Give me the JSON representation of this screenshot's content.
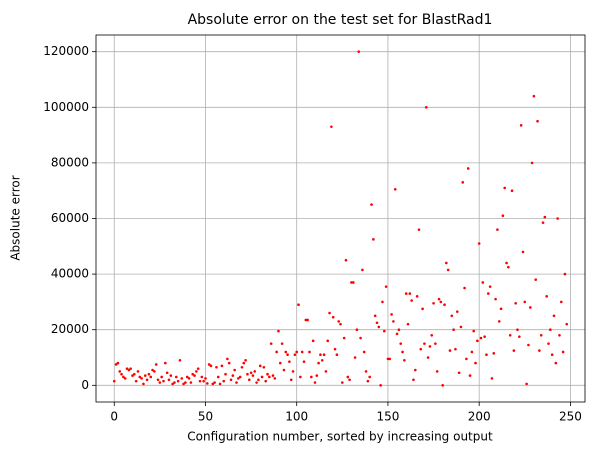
{
  "chart_data": {
    "type": "scatter",
    "title": "Absolute error on the test set for BlastRad1",
    "x_label": "Configuration number, sorted by increasing output",
    "y_label": "Absolute error",
    "color": "#ff0000",
    "grid": true,
    "xlim": [
      -10,
      258
    ],
    "ylim": [
      -6000,
      126000
    ],
    "xticks": [
      0,
      50,
      100,
      150,
      200,
      250
    ],
    "yticks": [
      0,
      20000,
      40000,
      60000,
      80000,
      100000,
      120000
    ],
    "x": [
      0,
      1,
      2,
      3,
      4,
      5,
      6,
      7,
      8,
      9,
      10,
      11,
      12,
      13,
      14,
      15,
      16,
      17,
      18,
      19,
      20,
      21,
      22,
      23,
      24,
      25,
      26,
      27,
      28,
      29,
      30,
      31,
      32,
      33,
      34,
      35,
      36,
      37,
      38,
      39,
      40,
      41,
      42,
      43,
      44,
      45,
      46,
      47,
      48,
      49,
      50,
      51,
      52,
      53,
      54,
      55,
      56,
      57,
      58,
      59,
      60,
      61,
      62,
      63,
      64,
      65,
      66,
      67,
      68,
      69,
      70,
      71,
      72,
      73,
      74,
      75,
      76,
      77,
      78,
      79,
      80,
      81,
      82,
      83,
      84,
      85,
      86,
      87,
      88,
      89,
      90,
      91,
      92,
      93,
      94,
      95,
      96,
      97,
      98,
      99,
      100,
      101,
      102,
      103,
      104,
      105,
      106,
      107,
      108,
      109,
      110,
      111,
      112,
      113,
      114,
      115,
      116,
      117,
      118,
      119,
      120,
      121,
      122,
      123,
      124,
      125,
      126,
      127,
      128,
      129,
      130,
      131,
      132,
      133,
      134,
      135,
      136,
      137,
      138,
      139,
      140,
      141,
      142,
      143,
      144,
      145,
      146,
      147,
      148,
      149,
      150,
      151,
      152,
      153,
      154,
      155,
      156,
      157,
      158,
      159,
      160,
      161,
      162,
      163,
      164,
      165,
      166,
      167,
      168,
      169,
      170,
      171,
      172,
      173,
      174,
      175,
      176,
      177,
      178,
      179,
      180,
      181,
      182,
      183,
      184,
      185,
      186,
      187,
      188,
      189,
      190,
      191,
      192,
      193,
      194,
      195,
      196,
      197,
      198,
      199,
      200,
      201,
      202,
      203,
      204,
      205,
      206,
      207,
      208,
      209,
      210,
      211,
      212,
      213,
      214,
      215,
      216,
      217,
      218,
      219,
      220,
      221,
      222,
      223,
      224,
      225,
      226,
      227,
      228,
      229,
      230,
      231,
      232,
      233,
      234,
      235,
      236,
      237,
      238,
      239,
      240,
      241,
      242,
      243,
      244,
      245,
      246,
      247,
      248
    ],
    "values": [
      1500,
      7500,
      8000,
      5000,
      4000,
      3000,
      2500,
      6000,
      5500,
      6000,
      3500,
      4000,
      1500,
      5000,
      3000,
      2500,
      500,
      3500,
      2000,
      4000,
      3000,
      5500,
      5000,
      7500,
      2000,
      1000,
      3000,
      1500,
      8000,
      4500,
      2000,
      3500,
      500,
      1000,
      3000,
      1500,
      9000,
      2500,
      500,
      1000,
      3000,
      2500,
      1000,
      4000,
      3500,
      5000,
      6000,
      1500,
      3000,
      1500,
      2500,
      700,
      7500,
      7000,
      500,
      1000,
      6500,
      3000,
      500,
      7000,
      1500,
      4000,
      9500,
      8000,
      2000,
      3500,
      5500,
      1000,
      2500,
      3000,
      6500,
      8000,
      9000,
      4000,
      2000,
      4500,
      3500,
      5000,
      1000,
      2000,
      7000,
      3000,
      6500,
      1500,
      4000,
      3000,
      15000,
      3500,
      2500,
      12000,
      19500,
      8000,
      15000,
      5500,
      12000,
      11000,
      8500,
      2000,
      5000,
      11000,
      12000,
      29000,
      3000,
      12000,
      8500,
      23500,
      23500,
      12000,
      3000,
      16000,
      1000,
      3500,
      8000,
      11000,
      9000,
      11000,
      5000,
      16000,
      26000,
      93000,
      24500,
      13000,
      11000,
      23000,
      22000,
      1000,
      17000,
      45000,
      3000,
      2000,
      37000,
      37000,
      10000,
      20000,
      120000,
      17000,
      41500,
      12000,
      5000,
      1500,
      3000,
      65000,
      52500,
      25000,
      22500,
      21000,
      0,
      30000,
      19500,
      35500,
      9500,
      9500,
      25500,
      23000,
      70500,
      18500,
      20000,
      15000,
      12000,
      9000,
      33000,
      22000,
      33000,
      30500,
      2000,
      5500,
      32000,
      56000,
      13000,
      27500,
      15000,
      100000,
      10000,
      14000,
      18000,
      29500,
      15000,
      5000,
      31000,
      30000,
      0,
      29000,
      44000,
      41500,
      12500,
      25000,
      20000,
      13000,
      26500,
      4500,
      21000,
      73000,
      35000,
      9500,
      78000,
      3500,
      12000,
      19500,
      8000,
      16000,
      51000,
      17000,
      37000,
      17500,
      11000,
      33000,
      35500,
      2500,
      11500,
      31000,
      56000,
      23000,
      27500,
      61000,
      71000,
      44000,
      42500,
      18000,
      70000,
      12500,
      29500,
      20000,
      17500,
      93500,
      48000,
      30000,
      500,
      14500,
      28000,
      80000,
      104000,
      38000,
      95000,
      12500,
      18000,
      58500,
      60500,
      32000,
      15000,
      20000,
      11000,
      25000,
      8000,
      60000,
      18000,
      30000,
      12000,
      40000,
      22000
    ]
  }
}
